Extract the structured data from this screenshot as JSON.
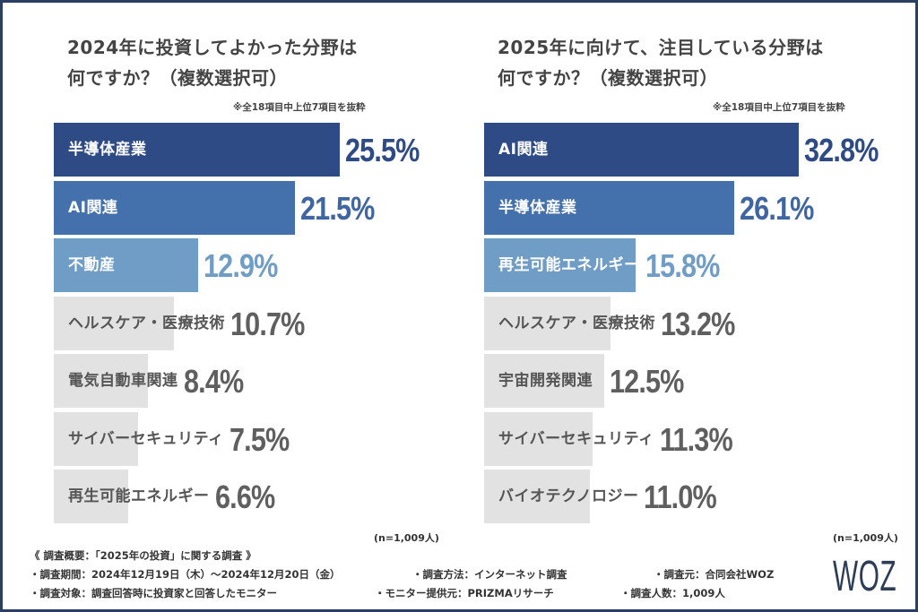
{
  "colors": {
    "rank1": "#2e4b85",
    "rank2": "#4470ab",
    "rank3": "#6f9dc6",
    "other_bar": "#e2e2e2",
    "label_light": "#ffffff",
    "label_dark": "#555555",
    "value_gray": "#5f5f5f",
    "value_rank1": "#2e4b85",
    "value_rank2": "#3f66a2",
    "value_rank3": "#6f9dc6"
  },
  "chart_data": [
    {
      "type": "bar",
      "orientation": "horizontal",
      "title": "2024年に投資してよかった分野は\n何ですか？（複数選択可）",
      "note": "※全18項目中上位7項目を抜粋",
      "sample": "(n=1,009人)",
      "categories": [
        "半導体産業",
        "AI関連",
        "不動産",
        "ヘルスケア・医療技術",
        "電気自動車関連",
        "サイバーセキュリティ",
        "再生可能エネルギー"
      ],
      "values": [
        25.5,
        21.5,
        12.9,
        10.7,
        8.4,
        7.5,
        6.6
      ],
      "value_labels": [
        "25.5%",
        "21.5%",
        "12.9%",
        "10.7%",
        "8.4%",
        "7.5%",
        "6.6%"
      ],
      "unit": "%",
      "xlim": [
        0,
        25.5
      ]
    },
    {
      "type": "bar",
      "orientation": "horizontal",
      "title": "2025年に向けて、注目している分野は\n何ですか？（複数選択可）",
      "note": "※全18項目中上位7項目を抜粋",
      "sample": "(n=1,009人)",
      "categories": [
        "AI関連",
        "半導体産業",
        "再生可能エネルギー",
        "ヘルスケア・医療技術",
        "宇宙開発関連",
        "サイバーセキュリティ",
        "バイオテクノロジー"
      ],
      "values": [
        32.8,
        26.1,
        15.8,
        13.2,
        12.5,
        11.3,
        11.0
      ],
      "value_labels": [
        "32.8%",
        "26.1%",
        "15.8%",
        "13.2%",
        "12.5%",
        "11.3%",
        "11.0%"
      ],
      "unit": "%",
      "xlim": [
        0,
        32.8
      ]
    }
  ],
  "footer": {
    "heading": "《 調査概要：「2025年の投資」に関する調査 》",
    "period": "・調査期間：2024年12月19日（木）～2024年12月20日（金）",
    "method": "・調査方法：インターネット調査",
    "source": "・調査元：合同会社WOZ",
    "target": "・調査対象：調査回答時に投資家と回答したモニター",
    "provider": "・モニター提供元：PRIZMAリサーチ",
    "respondents": "・調査人数：1,009人"
  },
  "logo": "WOZ"
}
